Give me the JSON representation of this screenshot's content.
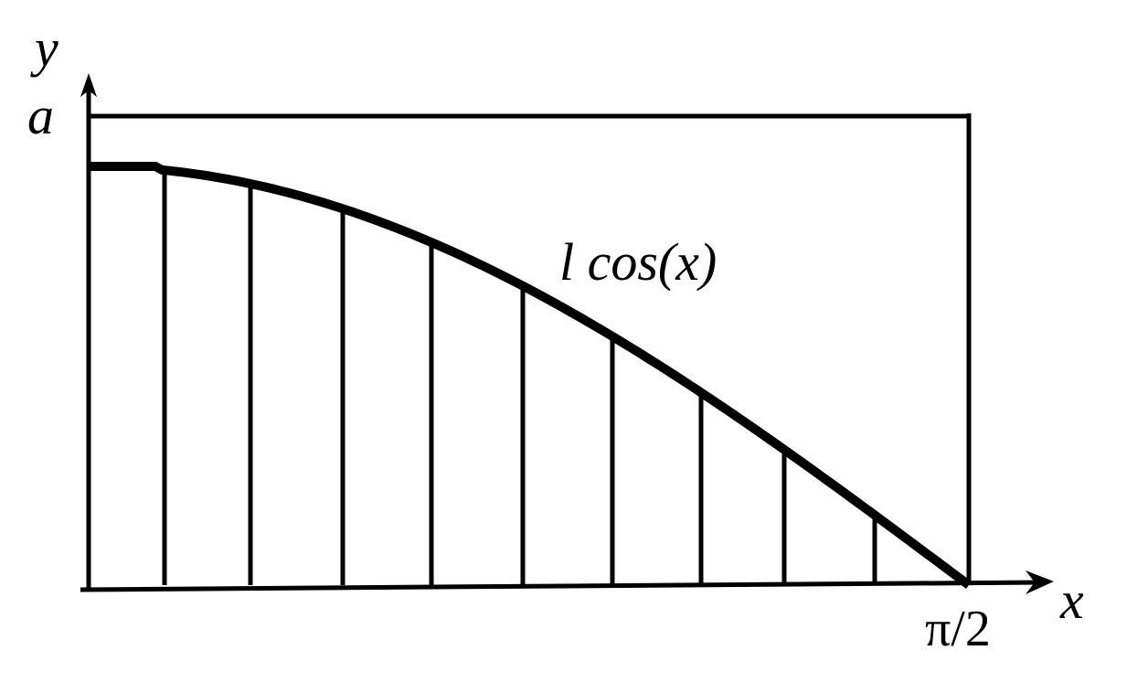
{
  "labels": {
    "y_axis": "y",
    "x_axis": "x",
    "a_value": "a",
    "x_end": "π/2",
    "curve": "l cos(x)"
  },
  "colors": {
    "stroke": "#000000",
    "background": "#ffffff"
  },
  "diagram": {
    "curve_function": "cos",
    "x_range": [
      0,
      1.5708
    ],
    "vertical_lines_count": 10
  }
}
